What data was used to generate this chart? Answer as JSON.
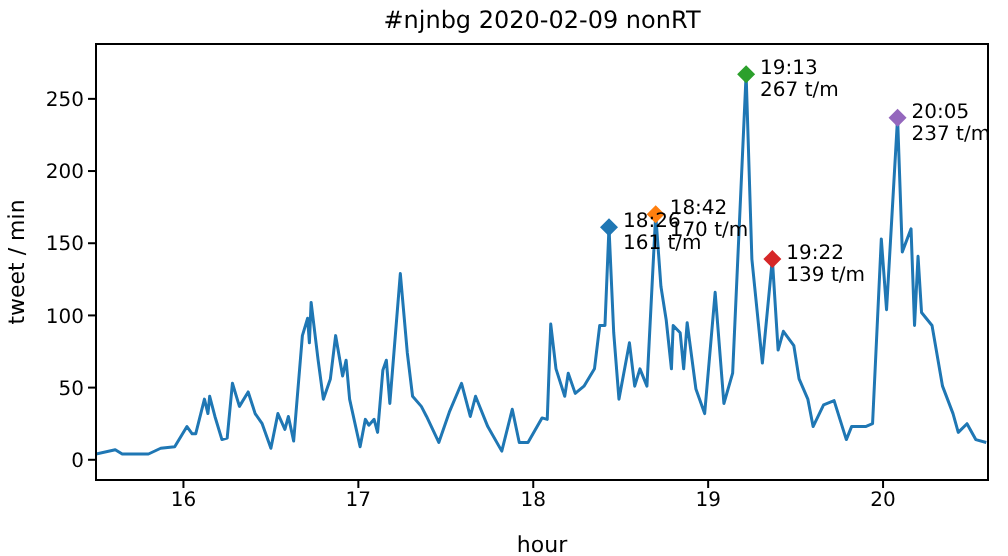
{
  "chart_data": {
    "type": "line",
    "title": "#njnbg 2020-02-09 nonRT",
    "xlabel": "hour",
    "ylabel": "tweet / min",
    "xlim": [
      15.5,
      20.6
    ],
    "xticks": [
      16,
      17,
      18,
      19,
      20
    ],
    "ylim": [
      -14,
      288
    ],
    "yticks": [
      0,
      50,
      100,
      150,
      200,
      250
    ],
    "grid": false,
    "line_style": "solid",
    "series": [
      {
        "color": "#1f77b4",
        "x": [
          15.5,
          15.61,
          15.65,
          15.8,
          15.87,
          15.95,
          16.02,
          16.05,
          16.07,
          16.12,
          16.14,
          16.15,
          16.18,
          16.22,
          16.25,
          16.28,
          16.32,
          16.37,
          16.41,
          16.45,
          16.5,
          16.54,
          16.58,
          16.6,
          16.63,
          16.68,
          16.71,
          16.72,
          16.73,
          16.77,
          16.8,
          16.84,
          16.87,
          16.91,
          16.93,
          16.95,
          17.01,
          17.04,
          17.06,
          17.09,
          17.11,
          17.14,
          17.16,
          17.18,
          17.24,
          17.28,
          17.31,
          17.36,
          17.39,
          17.46,
          17.52,
          17.59,
          17.64,
          17.67,
          17.74,
          17.82,
          17.88,
          17.92,
          17.95,
          17.97,
          18.05,
          18.08,
          18.1,
          18.13,
          18.18,
          18.2,
          18.24,
          18.29,
          18.35,
          18.38,
          18.41,
          18.433,
          18.46,
          18.49,
          18.55,
          18.58,
          18.61,
          18.65,
          18.7,
          18.73,
          18.76,
          18.79,
          18.8,
          18.84,
          18.86,
          18.88,
          18.93,
          18.98,
          19.04,
          19.09,
          19.14,
          19.217,
          19.25,
          19.31,
          19.367,
          19.4,
          19.43,
          19.49,
          19.52,
          19.57,
          19.6,
          19.66,
          19.72,
          19.79,
          19.82,
          19.9,
          19.94,
          19.99,
          20.02,
          20.083,
          20.11,
          20.16,
          20.18,
          20.2,
          20.22,
          20.28,
          20.34,
          20.4,
          20.43,
          20.48,
          20.53,
          20.59
        ],
        "values": [
          4,
          7,
          4,
          4,
          8,
          9,
          23,
          18,
          18,
          42,
          32,
          44,
          30,
          14,
          15,
          53,
          37,
          47,
          32,
          25,
          8,
          32,
          21,
          30,
          13,
          86,
          98,
          81,
          109,
          69,
          42,
          56,
          86,
          58,
          69,
          42,
          9,
          28,
          24,
          28,
          19,
          62,
          69,
          39,
          129,
          74,
          44,
          37,
          30,
          12,
          33,
          53,
          30,
          44,
          23,
          6,
          35,
          12,
          12,
          12,
          29,
          28,
          94,
          63,
          44,
          60,
          46,
          51,
          63,
          93,
          93,
          161,
          88,
          42,
          81,
          51,
          63,
          51,
          170,
          120,
          97,
          63,
          93,
          88,
          63,
          95,
          49,
          32,
          116,
          39,
          60,
          267,
          139,
          67,
          139,
          76,
          89,
          79,
          56,
          42,
          23,
          38,
          41,
          14,
          23,
          23,
          25,
          153,
          104,
          237,
          144,
          160,
          93,
          141,
          102,
          93,
          51,
          32,
          19,
          25,
          14,
          12
        ]
      },
      {
        "type": "scatter",
        "marker": "diamond",
        "color": "#1f77b4",
        "x": [
          18.433
        ],
        "values": [
          161
        ]
      },
      {
        "type": "scatter",
        "marker": "diamond",
        "color": "#ff7f0e",
        "x": [
          18.7
        ],
        "values": [
          170
        ]
      },
      {
        "type": "scatter",
        "marker": "diamond",
        "color": "#2ca02c",
        "x": [
          19.217
        ],
        "values": [
          267
        ]
      },
      {
        "type": "scatter",
        "marker": "diamond",
        "color": "#d62728",
        "x": [
          19.367
        ],
        "values": [
          139
        ]
      },
      {
        "type": "scatter",
        "marker": "diamond",
        "color": "#9467bd",
        "x": [
          20.083
        ],
        "values": [
          237
        ]
      }
    ],
    "annotations": [
      {
        "text": "18:26\n161 t/m",
        "x": 18.433,
        "y": 161
      },
      {
        "text": "18:42\n170 t/m",
        "x": 18.7,
        "y": 170
      },
      {
        "text": "19:13\n267 t/m",
        "x": 19.217,
        "y": 267
      },
      {
        "text": "19:22\n139 t/m",
        "x": 19.367,
        "y": 139
      },
      {
        "text": "20:05\n237 t/m",
        "x": 20.083,
        "y": 237
      }
    ]
  }
}
